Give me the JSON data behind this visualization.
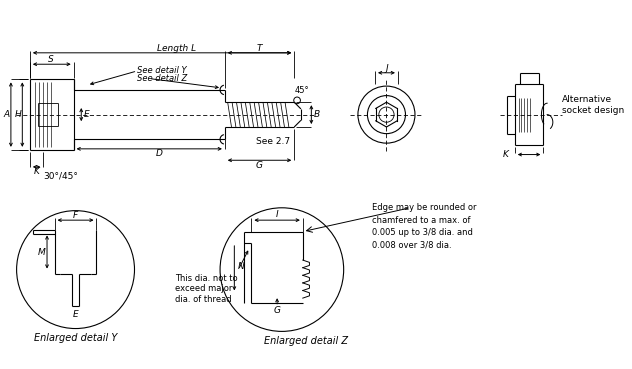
{
  "bg_color": "#ffffff",
  "line_color": "#000000",
  "annotation_edge": "Edge may be rounded or\nchamfered to a max. of\n0.005 up to 3/8 dia. and\n0.008 over 3/8 dia.",
  "text_detail_y": "Enlarged detail Y",
  "text_detail_z": "Enlarged detail Z",
  "text_not_exceed": "This dia. not to\nexceed major\ndia. of thread",
  "text_alt_socket": "Alternative\nsocket design",
  "text_see27": "See 2.7",
  "text_angles": "30°/45°",
  "text_45": "45°",
  "text_see_y": "See detail Y",
  "text_see_z": "See detail Z",
  "text_length_l": "Length L"
}
